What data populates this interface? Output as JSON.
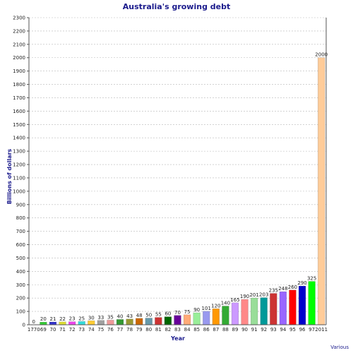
{
  "chart_data": {
    "type": "bar",
    "title": "Australia's growing debt",
    "xlabel": "Year",
    "ylabel": "Billions of dollars",
    "credit": "Various",
    "ylim": [
      0,
      2300
    ],
    "ytick_step": 100,
    "grid": true,
    "categories": [
      "1770",
      "69",
      "70",
      "71",
      "72",
      "73",
      "74",
      "75",
      "76",
      "77",
      "78",
      "79",
      "80",
      "81",
      "82",
      "83",
      "84",
      "85",
      "86",
      "87",
      "88",
      "89",
      "90",
      "91",
      "92",
      "93",
      "94",
      "95",
      "96",
      "97",
      "2011"
    ],
    "values": [
      0,
      20,
      21,
      22,
      23,
      25,
      30,
      33,
      35,
      40,
      43,
      48,
      50,
      55,
      60,
      70,
      75,
      90,
      101,
      120,
      140,
      165,
      190,
      201,
      203,
      235,
      248,
      260,
      290,
      325,
      2000
    ],
    "colors": [
      "#c0c0c0",
      "#33cc33",
      "#3333cc",
      "#dddd33",
      "#ee44ee",
      "#33dddd",
      "#ffcc33",
      "#a0a0a0",
      "#ee9999",
      "#339933",
      "#999933",
      "#cc6600",
      "#6699aa",
      "#cc3333",
      "#006600",
      "#660099",
      "#ffaa77",
      "#99ee99",
      "#9999ee",
      "#ff9900",
      "#33aa33",
      "#cc99ff",
      "#ff8888",
      "#99dd99",
      "#009999",
      "#cc3333",
      "#9966ff",
      "#ff0000",
      "#0000cc",
      "#00ff00",
      "#ffcc99"
    ]
  }
}
